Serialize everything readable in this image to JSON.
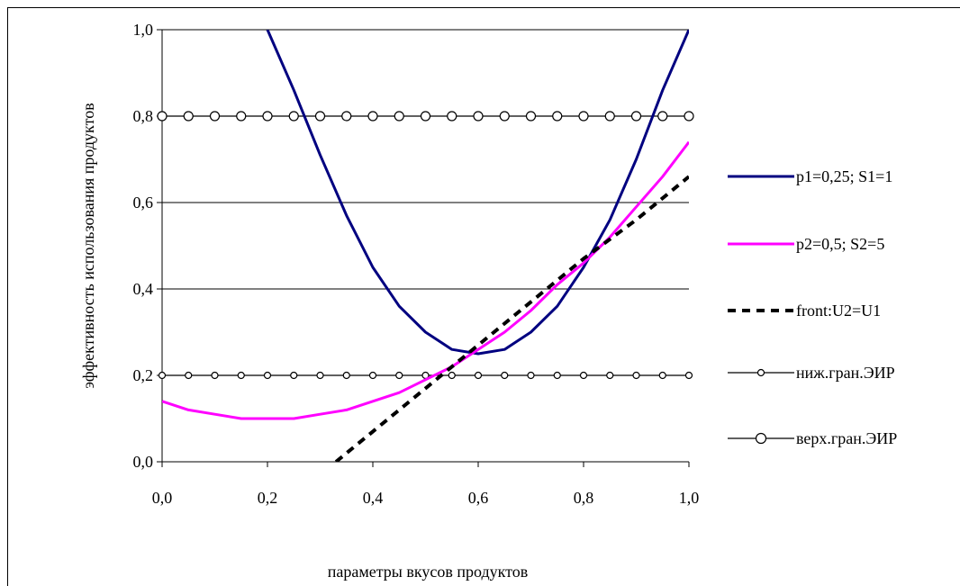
{
  "chart_data": {
    "type": "line",
    "title": "",
    "xlabel": "параметры вкусов продуктов",
    "ylabel": "эффективность использования продуктов",
    "xlim": [
      0.0,
      1.0
    ],
    "ylim": [
      0.0,
      1.0
    ],
    "x_tick_labels": [
      "0,0",
      "0,2",
      "0,4",
      "0,6",
      "0,8",
      "1,0"
    ],
    "y_tick_labels": [
      "0,0",
      "0,2",
      "0,4",
      "0,6",
      "0,8",
      "1,0"
    ],
    "grid": "horizontal",
    "legend_position": "right",
    "series": [
      {
        "name": "p1=0,25; S1=1",
        "color": "#000080",
        "style": "solid-thick",
        "x": [
          0.2,
          0.25,
          0.3,
          0.35,
          0.4,
          0.45,
          0.5,
          0.55,
          0.6,
          0.65,
          0.7,
          0.75,
          0.8,
          0.85,
          0.9,
          0.95,
          1.0
        ],
        "y": [
          1.0,
          0.86,
          0.71,
          0.57,
          0.45,
          0.36,
          0.3,
          0.26,
          0.25,
          0.26,
          0.3,
          0.36,
          0.45,
          0.56,
          0.7,
          0.86,
          1.0
        ]
      },
      {
        "name": "p2=0,5; S2=5",
        "color": "#ff00ff",
        "style": "solid-thick",
        "x": [
          0.0,
          0.05,
          0.1,
          0.15,
          0.2,
          0.25,
          0.3,
          0.35,
          0.4,
          0.45,
          0.5,
          0.55,
          0.6,
          0.65,
          0.7,
          0.75,
          0.8,
          0.85,
          0.9,
          0.95,
          1.0
        ],
        "y": [
          0.14,
          0.12,
          0.11,
          0.1,
          0.1,
          0.1,
          0.11,
          0.12,
          0.14,
          0.16,
          0.19,
          0.22,
          0.26,
          0.3,
          0.35,
          0.41,
          0.46,
          0.52,
          0.59,
          0.66,
          0.74
        ]
      },
      {
        "name": "front:U2=U1",
        "color": "#000000",
        "style": "dashed-thick",
        "x": [
          0.33,
          0.4,
          0.5,
          0.6,
          0.7,
          0.8,
          0.9,
          1.0
        ],
        "y": [
          0.0,
          0.07,
          0.17,
          0.27,
          0.37,
          0.47,
          0.56,
          0.66
        ]
      },
      {
        "name": "ниж.гран.ЭИР",
        "color": "#000000",
        "style": "line-small-markers",
        "x": [
          0.0,
          1.0
        ],
        "y": [
          0.2,
          0.2
        ]
      },
      {
        "name": "верх.гран.ЭИР",
        "color": "#000000",
        "style": "line-large-markers",
        "x": [
          0.0,
          1.0
        ],
        "y": [
          0.8,
          0.8
        ]
      }
    ]
  }
}
